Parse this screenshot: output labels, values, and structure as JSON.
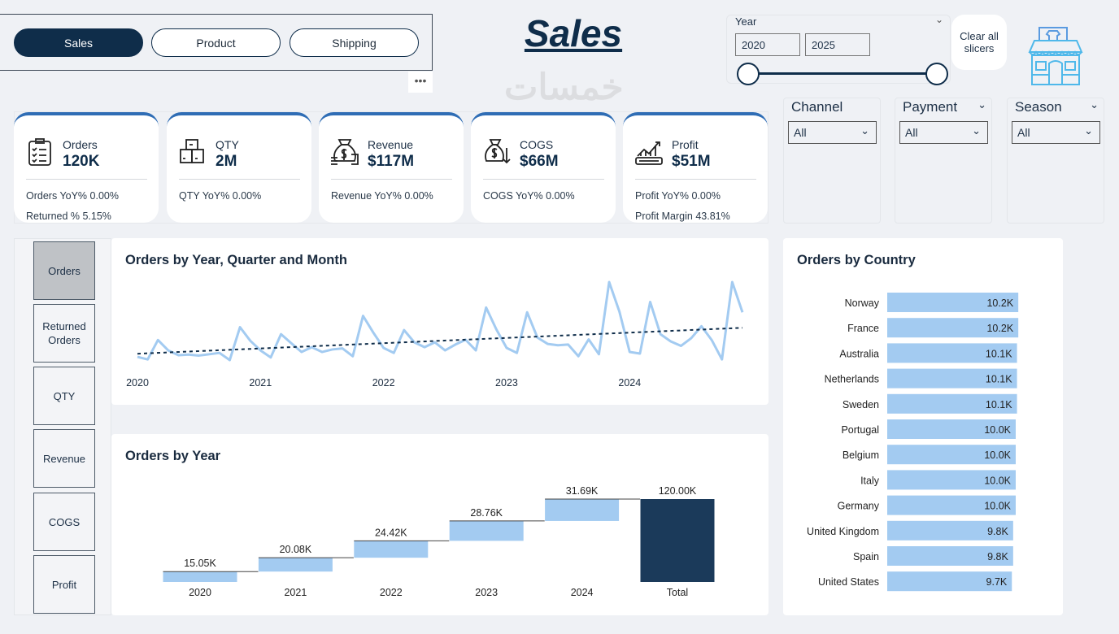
{
  "nav": {
    "tabs": [
      {
        "label": "Sales",
        "active": true
      },
      {
        "label": "Product",
        "active": false
      },
      {
        "label": "Shipping",
        "active": false
      }
    ],
    "more": "•••"
  },
  "header": {
    "title": "Sales"
  },
  "year_slicer": {
    "label": "Year",
    "from": "2020",
    "to": "2025",
    "range_fraction": [
      0,
      1
    ]
  },
  "clear_button": "Clear all slicers",
  "store_icon": "store-icon",
  "colors": {
    "accent": "#0f2d4a",
    "card_top": "#2f6db5",
    "bar": "#a3cbf1",
    "total_bar": "#1b3a5a",
    "trend": "#0f2d4a"
  },
  "kpis": [
    {
      "icon": "clipboard-checklist-icon",
      "name": "Orders",
      "value": "120K",
      "sub1": "Orders YoY% 0.00%",
      "sub2": "Returned % 5.15%"
    },
    {
      "icon": "boxes-icon",
      "name": "QTY",
      "value": "2M",
      "sub1": "QTY YoY% 0.00%",
      "sub2": ""
    },
    {
      "icon": "money-bag-icon",
      "name": "Revenue",
      "value": "$117M",
      "sub1": "Revenue YoY% 0.00%",
      "sub2": ""
    },
    {
      "icon": "money-bag-down-icon",
      "name": "COGS",
      "value": "$66M",
      "sub1": "COGS YoY% 0.00%",
      "sub2": ""
    },
    {
      "icon": "profit-chart-icon",
      "name": "Profit",
      "value": "$51M",
      "sub1": "Profit YoY% 0.00%",
      "sub2": "Profit Margin 43.81%"
    }
  ],
  "slicers": [
    {
      "label": "Channel",
      "value": "All"
    },
    {
      "label": "Payment",
      "value": "All"
    },
    {
      "label": "Season",
      "value": "All"
    }
  ],
  "metric_buttons": [
    {
      "label": "Orders",
      "selected": true
    },
    {
      "label": "Returned Orders",
      "selected": false
    },
    {
      "label": "QTY",
      "selected": false
    },
    {
      "label": "Revenue",
      "selected": false
    },
    {
      "label": "COGS",
      "selected": false
    },
    {
      "label": "Profit",
      "selected": false
    }
  ],
  "watermark": "خمسات",
  "chart_data": [
    {
      "type": "line",
      "title": "Orders by Year, Quarter and Month",
      "x_tick_labels": [
        "2020",
        "2021",
        "2022",
        "2023",
        "2024"
      ],
      "trendline": "linear, dotted",
      "values": [
        780,
        590,
        2050,
        1270,
        910,
        950,
        880,
        980,
        1080,
        540,
        3020,
        2000,
        1270,
        740,
        2490,
        1810,
        1150,
        1510,
        1150,
        1340,
        1420,
        830,
        3870,
        2610,
        1460,
        1080,
        2800,
        1880,
        1510,
        1880,
        1270,
        1710,
        2070,
        1270,
        4500,
        2850,
        1460,
        1080,
        4140,
        2240,
        1760,
        1660,
        1710,
        830,
        2100,
        980,
        6420,
        4190,
        1150,
        1030,
        4920,
        2490,
        1950,
        1610,
        2190,
        3090,
        2050,
        590,
        6420,
        4140
      ]
    },
    {
      "type": "bar",
      "subtype": "waterfall",
      "title": "Orders by Year",
      "categories": [
        "2020",
        "2021",
        "2022",
        "2023",
        "2024",
        "Total"
      ],
      "values": [
        15.05,
        20.08,
        24.42,
        28.76,
        31.69,
        120.0
      ],
      "labels": [
        "15.05K",
        "20.08K",
        "24.42K",
        "28.76K",
        "31.69K",
        "120.00K"
      ],
      "unit": "K"
    },
    {
      "type": "bar",
      "orientation": "horizontal",
      "title": "Orders by Country",
      "categories": [
        "Norway",
        "France",
        "Australia",
        "Netherlands",
        "Sweden",
        "Portugal",
        "Belgium",
        "Italy",
        "Germany",
        "United Kingdom",
        "Spain",
        "United States"
      ],
      "values": [
        10.2,
        10.2,
        10.1,
        10.1,
        10.1,
        10.0,
        10.0,
        10.0,
        10.0,
        9.8,
        9.8,
        9.7
      ],
      "labels": [
        "10.2K",
        "10.2K",
        "10.1K",
        "10.1K",
        "10.1K",
        "10.0K",
        "10.0K",
        "10.0K",
        "10.0K",
        "9.8K",
        "9.8K",
        "9.7K"
      ]
    }
  ]
}
